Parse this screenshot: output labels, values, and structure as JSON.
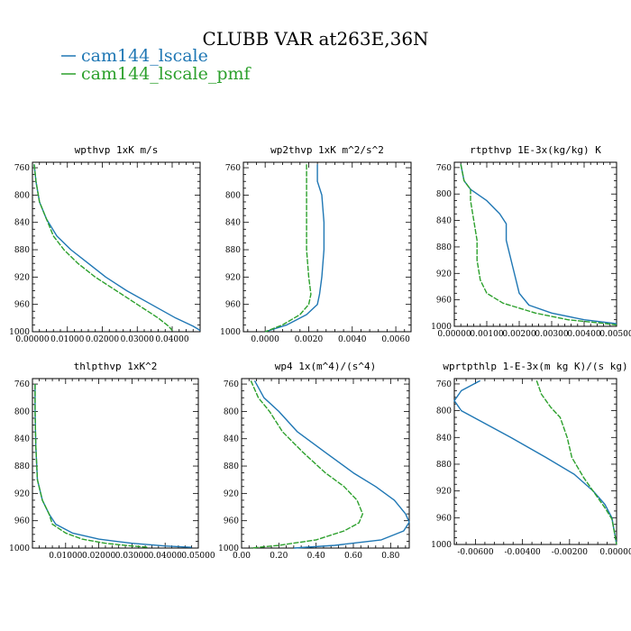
{
  "figure": {
    "title": "CLUBB VAR at263E,36N",
    "legend": [
      {
        "label": "cam144_lscale",
        "color": "#1f77b4"
      },
      {
        "label": "cam144_lscale_pmf",
        "color": "#2ca02c"
      }
    ]
  },
  "chart_data": [
    {
      "type": "line",
      "title": "wpthvp  1xK m/s",
      "xlim": [
        0,
        0.048
      ],
      "ylim": [
        1000,
        752
      ],
      "y_inverted": true,
      "xticks": [
        0,
        0.01,
        0.02,
        0.03,
        0.04
      ],
      "xtick_labels": [
        "0.00000",
        "0.01000",
        "0.02000",
        "0.03000",
        "0.04000"
      ],
      "yticks": [
        760,
        800,
        840,
        880,
        920,
        960,
        1000
      ],
      "series": [
        {
          "name": "cam144_lscale",
          "color": "#1f77b4",
          "x": [
            0.0005,
            0.001,
            0.002,
            0.004,
            0.007,
            0.011,
            0.016,
            0.021,
            0.027,
            0.034,
            0.041,
            0.046,
            0.048
          ],
          "y": [
            755,
            780,
            810,
            835,
            860,
            880,
            900,
            920,
            940,
            960,
            980,
            992,
            998
          ]
        },
        {
          "name": "cam144_lscale_pmf",
          "color": "#2ca02c",
          "x": [
            0.0005,
            0.001,
            0.002,
            0.004,
            0.006,
            0.009,
            0.013,
            0.018,
            0.024,
            0.03,
            0.036,
            0.039,
            0.04
          ],
          "y": [
            755,
            780,
            810,
            835,
            860,
            880,
            900,
            920,
            940,
            960,
            980,
            992,
            998
          ]
        }
      ]
    },
    {
      "type": "line",
      "title": "wp2thvp  1xK m^2/s^2",
      "xlim": [
        -0.001,
        0.0067
      ],
      "ylim": [
        1000,
        752
      ],
      "y_inverted": true,
      "xticks": [
        0,
        0.002,
        0.004,
        0.006
      ],
      "xtick_labels": [
        "0.0000",
        "0.0020",
        "0.0040",
        "0.0060"
      ],
      "yticks": [
        760,
        800,
        840,
        880,
        920,
        960,
        1000
      ],
      "series": [
        {
          "name": "cam144_lscale",
          "color": "#1f77b4",
          "x": [
            0.0024,
            0.0024,
            0.0026,
            0.0027,
            0.0027,
            0.0026,
            0.0025,
            0.0024,
            0.0019,
            0.001,
            0.0
          ],
          "y": [
            755,
            780,
            800,
            840,
            880,
            920,
            945,
            960,
            975,
            990,
            1000
          ]
        },
        {
          "name": "cam144_lscale_pmf",
          "color": "#2ca02c",
          "x": [
            0.0019,
            0.0019,
            0.0019,
            0.0019,
            0.002,
            0.0021,
            0.002,
            0.0016,
            0.0008,
            0.0
          ],
          "y": [
            755,
            800,
            840,
            880,
            920,
            945,
            960,
            975,
            990,
            1000
          ]
        }
      ]
    },
    {
      "type": "line",
      "title": "rtpthvp  1E-3x(kg/kg) K",
      "xlim": [
        0,
        0.005
      ],
      "ylim": [
        1000,
        752
      ],
      "y_inverted": true,
      "xticks": [
        0,
        0.001,
        0.002,
        0.003,
        0.004,
        0.005
      ],
      "xtick_labels": [
        "0.00000",
        "0.00100",
        "0.00200",
        "0.00300",
        "0.00400",
        "0.00500"
      ],
      "yticks": [
        760,
        800,
        840,
        880,
        920,
        960,
        1000
      ],
      "series": [
        {
          "name": "cam144_lscale",
          "color": "#1f77b4",
          "x": [
            0.0002,
            0.0003,
            0.0005,
            0.001,
            0.0014,
            0.0016,
            0.0016,
            0.0017,
            0.0018,
            0.0019,
            0.002,
            0.0023,
            0.003,
            0.004,
            0.005
          ],
          "y": [
            755,
            780,
            793,
            810,
            830,
            845,
            870,
            890,
            910,
            930,
            950,
            968,
            980,
            990,
            996
          ]
        },
        {
          "name": "cam144_lscale_pmf",
          "color": "#2ca02c",
          "x": [
            0.0002,
            0.0003,
            0.0005,
            0.0005,
            0.0006,
            0.0007,
            0.0007,
            0.0008,
            0.001,
            0.0015,
            0.0025,
            0.0035,
            0.0045,
            0.005
          ],
          "y": [
            755,
            780,
            793,
            810,
            840,
            870,
            900,
            930,
            950,
            965,
            980,
            990,
            995,
            998
          ]
        }
      ]
    },
    {
      "type": "line",
      "title": "thlpthvp  1xK^2",
      "xlim": [
        0,
        0.05
      ],
      "ylim": [
        1000,
        752
      ],
      "y_inverted": true,
      "xticks": [
        0.01,
        0.02,
        0.03,
        0.04,
        0.05
      ],
      "xtick_labels": [
        "0.01000",
        "0.02000",
        "0.03000",
        "0.04000",
        "0.05000"
      ],
      "yticks": [
        760,
        800,
        840,
        880,
        920,
        960,
        1000
      ],
      "series": [
        {
          "name": "cam144_lscale",
          "color": "#1f77b4",
          "x": [
            0.0008,
            0.0008,
            0.001,
            0.0015,
            0.003,
            0.005,
            0.007,
            0.012,
            0.02,
            0.03,
            0.04,
            0.048
          ],
          "y": [
            760,
            800,
            850,
            900,
            930,
            950,
            965,
            978,
            987,
            993,
            997,
            999
          ]
        },
        {
          "name": "cam144_lscale_pmf",
          "color": "#2ca02c",
          "x": [
            0.0008,
            0.0008,
            0.001,
            0.0015,
            0.003,
            0.005,
            0.006,
            0.01,
            0.015,
            0.022,
            0.03,
            0.035
          ],
          "y": [
            760,
            800,
            850,
            900,
            930,
            950,
            965,
            978,
            987,
            993,
            997,
            999
          ]
        }
      ]
    },
    {
      "type": "line",
      "title": "wp4  1x(m^4)/(s^4)",
      "xlim": [
        0,
        0.9
      ],
      "ylim": [
        1000,
        752
      ],
      "y_inverted": true,
      "xticks": [
        0,
        0.2,
        0.4,
        0.6,
        0.8
      ],
      "xtick_labels": [
        "0.00",
        "0.20",
        "0.40",
        "0.60",
        "0.80"
      ],
      "yticks": [
        760,
        800,
        840,
        880,
        920,
        960,
        1000
      ],
      "series": [
        {
          "name": "cam144_lscale",
          "color": "#1f77b4",
          "x": [
            0.07,
            0.12,
            0.2,
            0.3,
            0.45,
            0.6,
            0.72,
            0.82,
            0.88,
            0.9,
            0.87,
            0.75,
            0.5,
            0.28
          ],
          "y": [
            755,
            780,
            800,
            830,
            860,
            890,
            910,
            930,
            950,
            962,
            975,
            988,
            996,
            1000
          ]
        },
        {
          "name": "cam144_lscale_pmf",
          "color": "#2ca02c",
          "x": [
            0.05,
            0.09,
            0.15,
            0.22,
            0.33,
            0.45,
            0.55,
            0.62,
            0.65,
            0.63,
            0.55,
            0.4,
            0.2,
            0.05
          ],
          "y": [
            755,
            780,
            800,
            830,
            860,
            890,
            910,
            930,
            950,
            963,
            975,
            988,
            996,
            1000
          ]
        }
      ]
    },
    {
      "type": "line",
      "title": "wprtpthlp  1-E-3x(m kg K)/(s kg)",
      "xlim": [
        -0.0069,
        0.0
      ],
      "ylim": [
        1000,
        752
      ],
      "y_inverted": true,
      "xticks": [
        -0.006,
        -0.004,
        -0.002,
        0.0
      ],
      "xtick_labels": [
        "-0.00600",
        "-0.00400",
        "-0.00200",
        "0.00000"
      ],
      "yticks": [
        760,
        800,
        840,
        880,
        920,
        960,
        1000
      ],
      "series": [
        {
          "name": "cam144_lscale",
          "color": "#1f77b4",
          "x": [
            -0.0058,
            -0.0066,
            -0.0069,
            -0.0066,
            -0.0045,
            -0.003,
            -0.0018,
            -0.001,
            -0.0005,
            -0.0002,
            -0.0001,
            0.0
          ],
          "y": [
            755,
            770,
            785,
            800,
            840,
            870,
            895,
            920,
            940,
            960,
            980,
            1000
          ]
        },
        {
          "name": "cam144_lscale_pmf",
          "color": "#2ca02c",
          "x": [
            -0.0034,
            -0.0032,
            -0.0028,
            -0.0024,
            -0.0021,
            -0.0019,
            -0.0014,
            -0.0009,
            -0.0005,
            -0.0002,
            -0.0001,
            0.0
          ],
          "y": [
            755,
            775,
            795,
            810,
            840,
            870,
            900,
            925,
            945,
            962,
            980,
            1000
          ]
        }
      ]
    }
  ]
}
